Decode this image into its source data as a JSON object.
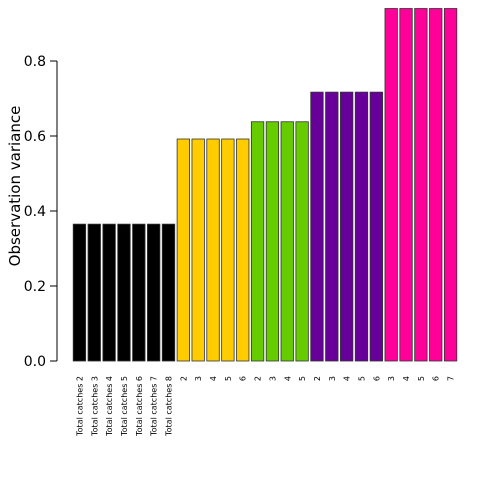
{
  "chart_data": {
    "type": "bar",
    "title": "",
    "xlabel": "",
    "ylabel": "Observation variance",
    "ylim": [
      0,
      0.95
    ],
    "yticks": [
      0.0,
      0.2,
      0.4,
      0.6,
      0.8
    ],
    "ytick_labels": [
      "0.0",
      "0.2",
      "0.4",
      "0.6",
      "0.8"
    ],
    "grid": false,
    "legend": null,
    "categories": [
      "Total catches 2",
      "Total catches 3",
      "Total catches 4",
      "Total catches 5",
      "Total catches 6",
      "Total catches 7",
      "Total catches 8",
      "2",
      "3",
      "4",
      "5",
      "6",
      "2",
      "3",
      "4",
      "5",
      "2",
      "3",
      "4",
      "5",
      "6",
      "3",
      "4",
      "5",
      "6",
      "7"
    ],
    "values": [
      0.365,
      0.365,
      0.365,
      0.365,
      0.365,
      0.365,
      0.365,
      0.592,
      0.592,
      0.592,
      0.592,
      0.592,
      0.638,
      0.638,
      0.638,
      0.638,
      0.717,
      0.717,
      0.717,
      0.717,
      0.717,
      0.94,
      0.94,
      0.94,
      0.94,
      0.94
    ],
    "groups": [
      {
        "color": "#000000",
        "count": 7
      },
      {
        "color": "#FFCC00",
        "count": 5
      },
      {
        "color": "#66CC00",
        "count": 4
      },
      {
        "color": "#660099",
        "count": 5
      },
      {
        "color": "#FF0099",
        "count": 5
      }
    ]
  }
}
